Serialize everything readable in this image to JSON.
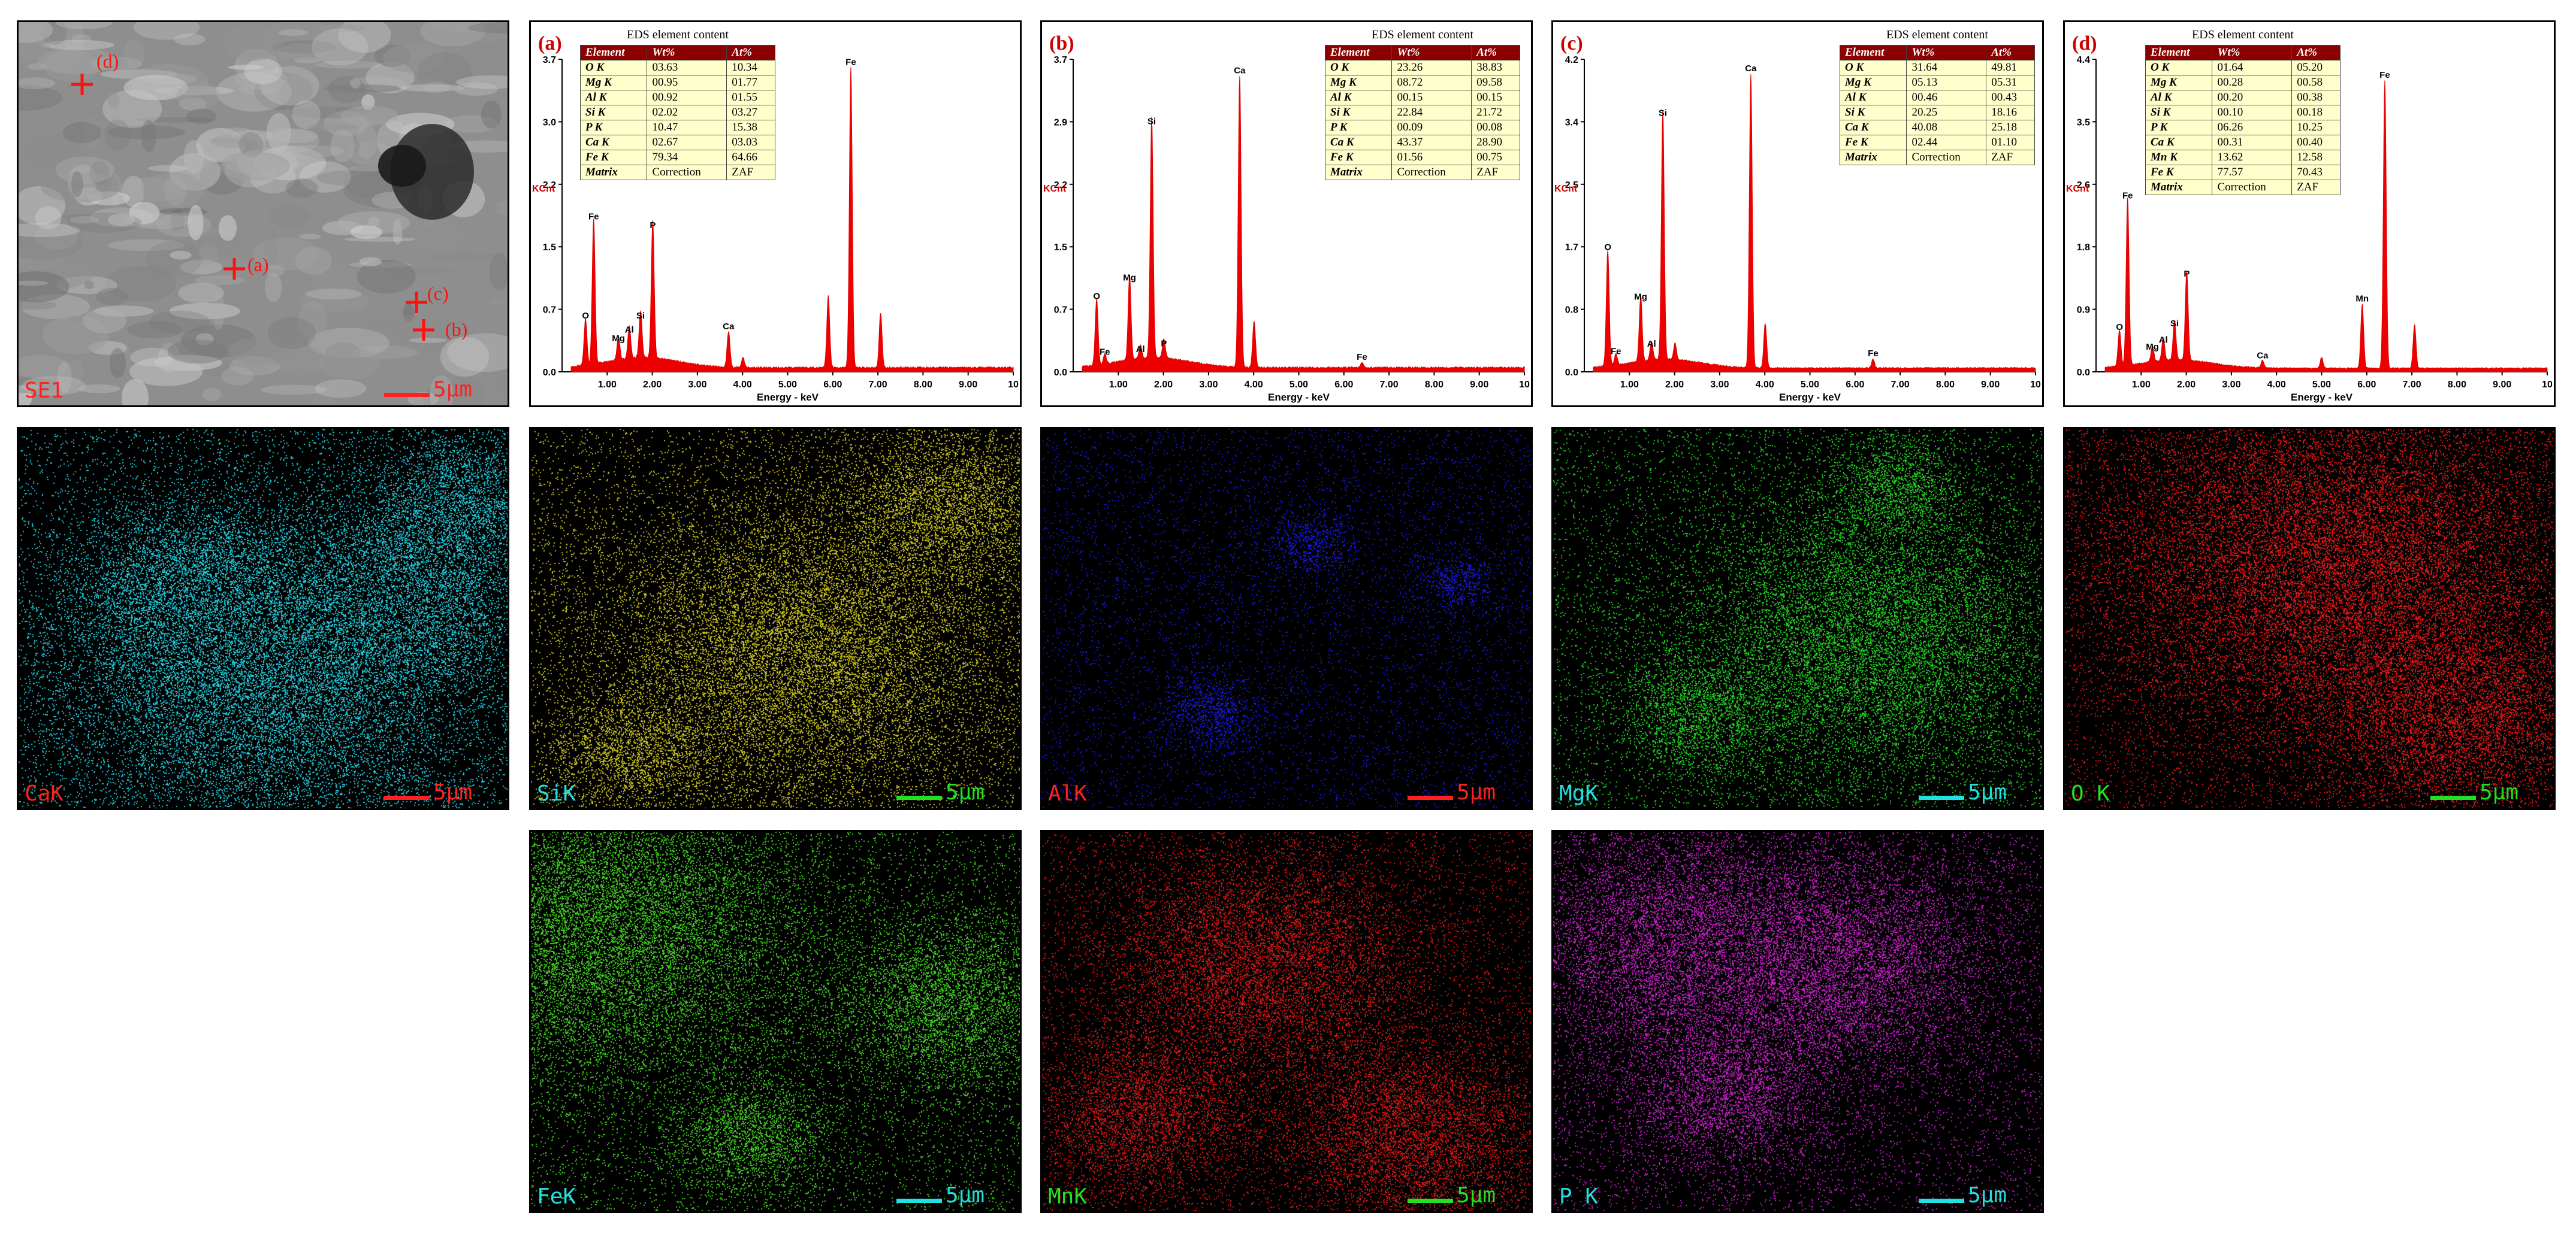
{
  "sem": {
    "label": "SE1",
    "scalebar": "5μm",
    "markers": [
      "(a)",
      "(b)",
      "(c)",
      "(d)"
    ]
  },
  "table_title": "EDS element content",
  "table_headers": [
    "Element",
    "Wt%",
    "At%"
  ],
  "panels": [
    {
      "tag": "(a)",
      "y_ticks": [
        "0.0",
        "0.7",
        "1.5",
        "2.2",
        "3.0",
        "3.7"
      ],
      "ymax": 3.7,
      "rows": [
        [
          "O K",
          "03.63",
          "10.34"
        ],
        [
          "Mg K",
          "00.95",
          "01.77"
        ],
        [
          "Al K",
          "00.92",
          "01.55"
        ],
        [
          "Si K",
          "02.02",
          "03.27"
        ],
        [
          "P K",
          "10.47",
          "15.38"
        ],
        [
          "Ca K",
          "02.67",
          "03.03"
        ],
        [
          "Fe K",
          "79.34",
          "64.66"
        ],
        [
          "Matrix",
          "Correction",
          "ZAF"
        ]
      ]
    },
    {
      "tag": "(b)",
      "y_ticks": [
        "0.0",
        "0.7",
        "1.5",
        "2.2",
        "2.9",
        "3.7"
      ],
      "ymax": 3.7,
      "rows": [
        [
          "O K",
          "23.26",
          "38.83"
        ],
        [
          "Mg K",
          "08.72",
          "09.58"
        ],
        [
          "Al K",
          "00.15",
          "00.15"
        ],
        [
          "Si K",
          "22.84",
          "21.72"
        ],
        [
          "P K",
          "00.09",
          "00.08"
        ],
        [
          "Ca K",
          "43.37",
          "28.90"
        ],
        [
          "Fe K",
          "01.56",
          "00.75"
        ],
        [
          "Matrix",
          "Correction",
          "ZAF"
        ]
      ]
    },
    {
      "tag": "(c)",
      "y_ticks": [
        "0.0",
        "0.8",
        "1.7",
        "2.5",
        "3.4",
        "4.2"
      ],
      "ymax": 4.2,
      "rows": [
        [
          "O K",
          "31.64",
          "49.81"
        ],
        [
          "Mg K",
          "05.13",
          "05.31"
        ],
        [
          "Al K",
          "00.46",
          "00.43"
        ],
        [
          "Si K",
          "20.25",
          "18.16"
        ],
        [
          "Ca K",
          "40.08",
          "25.18"
        ],
        [
          "Fe K",
          "02.44",
          "01.10"
        ],
        [
          "Matrix",
          "Correction",
          "ZAF"
        ]
      ]
    },
    {
      "tag": "(d)",
      "y_ticks": [
        "0.0",
        "0.9",
        "1.8",
        "2.6",
        "3.5",
        "4.4"
      ],
      "ymax": 4.4,
      "rows": [
        [
          "O K",
          "01.64",
          "05.20"
        ],
        [
          "Mg K",
          "00.28",
          "00.58"
        ],
        [
          "Al K",
          "00.20",
          "00.38"
        ],
        [
          "Si K",
          "00.10",
          "00.18"
        ],
        [
          "P K",
          "06.26",
          "10.25"
        ],
        [
          "Ca K",
          "00.31",
          "00.40"
        ],
        [
          "Mn K",
          "13.62",
          "12.58"
        ],
        [
          "Fe K",
          "77.57",
          "70.43"
        ],
        [
          "Matrix",
          "Correction",
          "ZAF"
        ]
      ]
    }
  ],
  "chart_data": [
    {
      "type": "line",
      "panel": "(a)",
      "xlabel": "Energy - keV",
      "ylabel": "KCnt",
      "xlim": [
        0,
        10
      ],
      "ylim": [
        0,
        3.7
      ],
      "x_ticks": [
        "1.00",
        "2.00",
        "3.00",
        "4.00",
        "5.00",
        "6.00",
        "7.00",
        "8.00",
        "9.00",
        "10"
      ],
      "peaks": [
        {
          "label": "O",
          "x": 0.52,
          "y": 0.55
        },
        {
          "label": "Fe",
          "x": 0.7,
          "y": 1.72
        },
        {
          "label": "Mg",
          "x": 1.25,
          "y": 0.28
        },
        {
          "label": "Al",
          "x": 1.49,
          "y": 0.38
        },
        {
          "label": "Si",
          "x": 1.74,
          "y": 0.55
        },
        {
          "label": "P",
          "x": 2.01,
          "y": 1.62
        },
        {
          "label": "Ca",
          "x": 3.69,
          "y": 0.42
        },
        {
          "label": "",
          "x": 4.01,
          "y": 0.12
        },
        {
          "label": "",
          "x": 5.9,
          "y": 0.85
        },
        {
          "label": "Fe",
          "x": 6.4,
          "y": 3.55
        },
        {
          "label": "",
          "x": 7.06,
          "y": 0.65
        }
      ]
    },
    {
      "type": "line",
      "panel": "(b)",
      "xlabel": "Energy - keV",
      "ylabel": "KCnt",
      "xlim": [
        0,
        10
      ],
      "ylim": [
        0,
        3.7
      ],
      "x_ticks": [
        "1.00",
        "2.00",
        "3.00",
        "4.00",
        "5.00",
        "6.00",
        "7.00",
        "8.00",
        "9.00",
        "10"
      ],
      "peaks": [
        {
          "label": "O",
          "x": 0.52,
          "y": 0.78
        },
        {
          "label": "Fe",
          "x": 0.7,
          "y": 0.12
        },
        {
          "label": "Mg",
          "x": 1.25,
          "y": 1.0
        },
        {
          "label": "Al",
          "x": 1.49,
          "y": 0.15
        },
        {
          "label": "Si",
          "x": 1.74,
          "y": 2.85
        },
        {
          "label": "P",
          "x": 2.01,
          "y": 0.22
        },
        {
          "label": "Ca",
          "x": 3.69,
          "y": 3.45
        },
        {
          "label": "",
          "x": 4.01,
          "y": 0.55
        },
        {
          "label": "Fe",
          "x": 6.4,
          "y": 0.06
        }
      ]
    },
    {
      "type": "line",
      "panel": "(c)",
      "xlabel": "Energy - keV",
      "ylabel": "KCnt",
      "xlim": [
        0,
        10
      ],
      "ylim": [
        0,
        4.2
      ],
      "x_ticks": [
        "1.00",
        "2.00",
        "3.00",
        "4.00",
        "5.00",
        "6.00",
        "7.00",
        "8.00",
        "9.00",
        "10"
      ],
      "peaks": [
        {
          "label": "O",
          "x": 0.52,
          "y": 1.55
        },
        {
          "label": "Fe",
          "x": 0.7,
          "y": 0.15
        },
        {
          "label": "Mg",
          "x": 1.25,
          "y": 0.88
        },
        {
          "label": "Al",
          "x": 1.49,
          "y": 0.25
        },
        {
          "label": "Si",
          "x": 1.74,
          "y": 3.35
        },
        {
          "label": "",
          "x": 2.01,
          "y": 0.22
        },
        {
          "label": "Ca",
          "x": 3.69,
          "y": 3.95
        },
        {
          "label": "",
          "x": 4.01,
          "y": 0.6
        },
        {
          "label": "Fe",
          "x": 6.4,
          "y": 0.12
        }
      ]
    },
    {
      "type": "line",
      "panel": "(d)",
      "xlabel": "Energy - keV",
      "ylabel": "KCnt",
      "xlim": [
        0,
        10
      ],
      "ylim": [
        0,
        4.4
      ],
      "x_ticks": [
        "1.00",
        "2.00",
        "3.00",
        "4.00",
        "5.00",
        "6.00",
        "7.00",
        "8.00",
        "9.00",
        "10"
      ],
      "peaks": [
        {
          "label": "O",
          "x": 0.52,
          "y": 0.5
        },
        {
          "label": "Fe",
          "x": 0.7,
          "y": 2.35
        },
        {
          "label": "Mg",
          "x": 1.25,
          "y": 0.22
        },
        {
          "label": "Al",
          "x": 1.49,
          "y": 0.32
        },
        {
          "label": "Si",
          "x": 1.74,
          "y": 0.55
        },
        {
          "label": "P",
          "x": 2.01,
          "y": 1.25
        },
        {
          "label": "Ca",
          "x": 3.69,
          "y": 0.1
        },
        {
          "label": "",
          "x": 5.0,
          "y": 0.15
        },
        {
          "label": "Mn",
          "x": 5.9,
          "y": 0.9
        },
        {
          "label": "Fe",
          "x": 6.4,
          "y": 4.05
        },
        {
          "label": "",
          "x": 7.06,
          "y": 0.62
        }
      ]
    }
  ],
  "maps": [
    {
      "label": "CaK",
      "label_color": "#ff2020",
      "dot_color": "#22c8d8",
      "bar_color": "#ff2020",
      "scalebar": "5μm"
    },
    {
      "label": "SiK",
      "label_color": "#22e0e0",
      "dot_color": "#c8c020",
      "bar_color": "#22e022",
      "scalebar": "5μm"
    },
    {
      "label": "AlK",
      "label_color": "#ff2020",
      "dot_color": "#1a1ad0",
      "bar_color": "#ff2020",
      "scalebar": "5μm"
    },
    {
      "label": "MgK",
      "label_color": "#22e0e0",
      "dot_color": "#22d022",
      "bar_color": "#22e0e0",
      "scalebar": "5μm"
    },
    {
      "label": "O K",
      "label_color": "#22e022",
      "dot_color": "#e01818",
      "bar_color": "#22e022",
      "scalebar": "5μm"
    },
    {
      "label": "FeK",
      "label_color": "#22e0e0",
      "dot_color": "#40d020",
      "bar_color": "#22e0e0",
      "scalebar": "5μm"
    },
    {
      "label": "MnK",
      "label_color": "#22e022",
      "dot_color": "#d01818",
      "bar_color": "#22e022",
      "scalebar": "5μm"
    },
    {
      "label": "P K",
      "label_color": "#22e0e0",
      "dot_color": "#c020c0",
      "bar_color": "#22e0e0",
      "scalebar": "5μm"
    }
  ]
}
